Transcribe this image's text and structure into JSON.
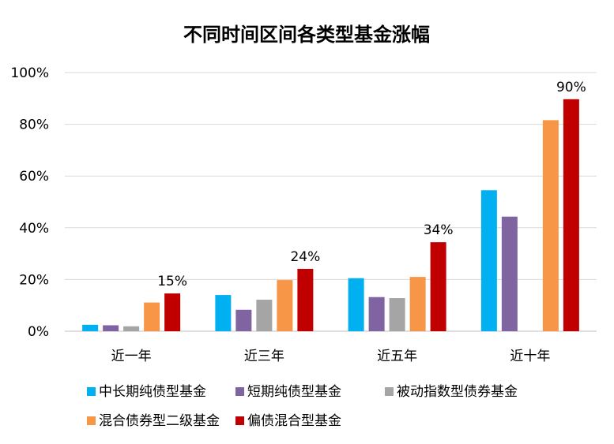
{
  "chart_data": {
    "type": "bar",
    "title": "不同时间区间各类型基金涨幅",
    "categories": [
      "近一年",
      "近三年",
      "近五年",
      "近十年"
    ],
    "ylim": [
      0,
      100
    ],
    "yticks": [
      "0%",
      "20%",
      "40%",
      "60%",
      "80%",
      "100%"
    ],
    "grid": true,
    "legend_position": "bottom",
    "series": [
      {
        "name": "中长期纯债型基金",
        "color": "#00b0f0",
        "values": [
          2.5,
          14,
          20.5,
          54.5
        ]
      },
      {
        "name": "短期纯债型基金",
        "color": "#8064a2",
        "values": [
          2.3,
          8.3,
          13.2,
          44.3
        ]
      },
      {
        "name": "被动指数型债券基金",
        "color": "#a5a5a5",
        "values": [
          1.9,
          12.2,
          12.8,
          null
        ]
      },
      {
        "name": "混合债券型二级基金",
        "color": "#f79646",
        "values": [
          11.1,
          19.8,
          21,
          81.6
        ]
      },
      {
        "name": "偏债混合型基金",
        "color": "#c00000",
        "values": [
          14.6,
          24.1,
          34.4,
          89.7
        ]
      }
    ],
    "data_labels": [
      {
        "category": "近一年",
        "text": "15%"
      },
      {
        "category": "近三年",
        "text": "24%"
      },
      {
        "category": "近五年",
        "text": "34%"
      },
      {
        "category": "近十年",
        "text": "90%"
      }
    ]
  }
}
